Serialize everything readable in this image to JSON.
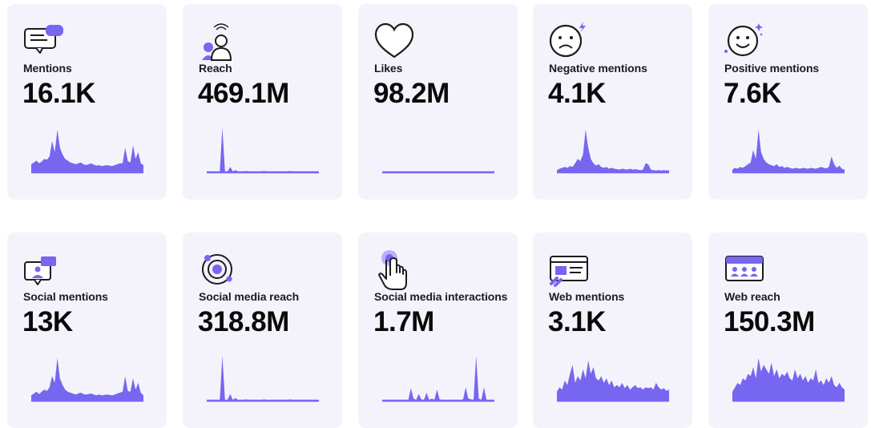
{
  "accent": "#7766f0",
  "cards": [
    {
      "label": "Mentions",
      "value": "16.1K",
      "icon": "speech-bubble-icon",
      "spark": [
        0.18,
        0.22,
        0.26,
        0.2,
        0.24,
        0.3,
        0.28,
        0.35,
        0.7,
        0.45,
        0.95,
        0.55,
        0.4,
        0.3,
        0.26,
        0.22,
        0.2,
        0.18,
        0.2,
        0.22,
        0.18,
        0.16,
        0.18,
        0.2,
        0.17,
        0.15,
        0.16,
        0.14,
        0.15,
        0.16,
        0.15,
        0.14,
        0.16,
        0.18,
        0.2,
        0.2,
        0.55,
        0.25,
        0.22,
        0.6,
        0.3,
        0.45,
        0.2,
        0.16
      ]
    },
    {
      "label": "Reach",
      "value": "469.1M",
      "icon": "audience-icon",
      "spark": [
        0.02,
        0.02,
        0.02,
        0.02,
        0.02,
        0.02,
        1.0,
        0.02,
        0.02,
        0.12,
        0.02,
        0.05,
        0.02,
        0.02,
        0.02,
        0.03,
        0.02,
        0.02,
        0.02,
        0.02,
        0.02,
        0.02,
        0.03,
        0.02,
        0.02,
        0.02,
        0.02,
        0.02,
        0.02,
        0.02,
        0.02,
        0.02,
        0.03,
        0.02,
        0.02,
        0.02,
        0.02,
        0.02,
        0.02,
        0.02,
        0.02,
        0.02,
        0.02,
        0.02
      ]
    },
    {
      "label": "Likes",
      "value": "98.2M",
      "icon": "heart-icon",
      "spark": [
        0.02,
        0.02,
        0.02,
        0.02,
        0.02,
        0.02,
        0.02,
        0.02,
        0.02,
        0.02,
        0.02,
        0.02,
        0.02,
        0.02,
        0.02,
        0.02,
        0.02,
        0.02,
        0.02,
        0.02,
        0.02,
        0.02,
        0.02,
        0.02,
        0.02,
        0.02,
        0.02,
        0.02,
        0.02,
        0.02,
        0.02,
        0.02,
        0.02,
        0.02,
        0.02,
        0.02,
        0.02,
        0.02,
        0.02,
        0.02,
        0.02,
        0.02,
        0.02,
        0.02
      ]
    },
    {
      "label": "Negative mentions",
      "value": "4.1K",
      "icon": "sad-face-icon",
      "spark": [
        0.05,
        0.08,
        0.1,
        0.12,
        0.1,
        0.14,
        0.12,
        0.2,
        0.3,
        0.25,
        0.4,
        0.95,
        0.55,
        0.3,
        0.2,
        0.15,
        0.18,
        0.12,
        0.1,
        0.12,
        0.08,
        0.1,
        0.08,
        0.07,
        0.06,
        0.08,
        0.07,
        0.06,
        0.08,
        0.06,
        0.07,
        0.06,
        0.05,
        0.06,
        0.2,
        0.18,
        0.06,
        0.05,
        0.04,
        0.05,
        0.04,
        0.05,
        0.04,
        0.05
      ]
    },
    {
      "label": "Positive mentions",
      "value": "7.6K",
      "icon": "happy-face-icon",
      "spark": [
        0.06,
        0.1,
        0.08,
        0.12,
        0.1,
        0.14,
        0.18,
        0.22,
        0.5,
        0.3,
        0.95,
        0.45,
        0.3,
        0.22,
        0.18,
        0.16,
        0.14,
        0.18,
        0.12,
        0.14,
        0.1,
        0.12,
        0.1,
        0.08,
        0.1,
        0.09,
        0.08,
        0.1,
        0.09,
        0.08,
        0.1,
        0.09,
        0.08,
        0.1,
        0.12,
        0.1,
        0.09,
        0.12,
        0.35,
        0.18,
        0.1,
        0.15,
        0.08,
        0.06
      ]
    },
    {
      "label": "Social mentions",
      "value": "13K",
      "icon": "social-chat-icon",
      "spark": [
        0.12,
        0.16,
        0.2,
        0.15,
        0.2,
        0.25,
        0.22,
        0.3,
        0.55,
        0.4,
        0.95,
        0.5,
        0.35,
        0.25,
        0.2,
        0.18,
        0.16,
        0.14,
        0.16,
        0.18,
        0.15,
        0.14,
        0.15,
        0.16,
        0.14,
        0.12,
        0.14,
        0.12,
        0.13,
        0.14,
        0.13,
        0.12,
        0.14,
        0.16,
        0.18,
        0.2,
        0.55,
        0.22,
        0.2,
        0.5,
        0.25,
        0.4,
        0.18,
        0.12
      ]
    },
    {
      "label": "Social media reach",
      "value": "318.8M",
      "icon": "orbit-icon",
      "spark": [
        0.02,
        0.02,
        0.02,
        0.02,
        0.02,
        0.02,
        1.0,
        0.02,
        0.02,
        0.15,
        0.02,
        0.06,
        0.02,
        0.02,
        0.02,
        0.03,
        0.02,
        0.02,
        0.02,
        0.02,
        0.02,
        0.02,
        0.03,
        0.02,
        0.02,
        0.02,
        0.02,
        0.02,
        0.02,
        0.02,
        0.02,
        0.02,
        0.03,
        0.02,
        0.02,
        0.02,
        0.02,
        0.02,
        0.02,
        0.02,
        0.02,
        0.02,
        0.02,
        0.02
      ]
    },
    {
      "label": "Social media interactions",
      "value": "1.7M",
      "icon": "tap-hand-icon",
      "spark": [
        0.02,
        0.02,
        0.02,
        0.02,
        0.02,
        0.02,
        0.02,
        0.02,
        0.02,
        0.02,
        0.02,
        0.28,
        0.05,
        0.02,
        0.15,
        0.03,
        0.02,
        0.18,
        0.02,
        0.05,
        0.02,
        0.25,
        0.03,
        0.02,
        0.02,
        0.02,
        0.02,
        0.02,
        0.02,
        0.02,
        0.02,
        0.03,
        0.3,
        0.05,
        0.03,
        0.02,
        1.0,
        0.05,
        0.02,
        0.3,
        0.02,
        0.02,
        0.02,
        0.02
      ]
    },
    {
      "label": "Web mentions",
      "value": "3.1K",
      "icon": "web-link-icon",
      "spark": [
        0.2,
        0.3,
        0.25,
        0.45,
        0.35,
        0.6,
        0.8,
        0.4,
        0.55,
        0.45,
        0.7,
        0.5,
        0.9,
        0.6,
        0.75,
        0.5,
        0.45,
        0.55,
        0.4,
        0.5,
        0.35,
        0.45,
        0.3,
        0.35,
        0.3,
        0.4,
        0.28,
        0.35,
        0.25,
        0.3,
        0.35,
        0.28,
        0.3,
        0.25,
        0.3,
        0.28,
        0.3,
        0.25,
        0.4,
        0.3,
        0.25,
        0.28,
        0.22,
        0.25
      ]
    },
    {
      "label": "Web reach",
      "value": "150.3M",
      "icon": "web-audience-icon",
      "spark": [
        0.2,
        0.3,
        0.4,
        0.35,
        0.5,
        0.45,
        0.6,
        0.55,
        0.75,
        0.5,
        0.95,
        0.65,
        0.8,
        0.7,
        0.6,
        0.85,
        0.55,
        0.7,
        0.5,
        0.6,
        0.55,
        0.65,
        0.5,
        0.45,
        0.7,
        0.5,
        0.6,
        0.45,
        0.55,
        0.4,
        0.5,
        0.45,
        0.7,
        0.4,
        0.45,
        0.35,
        0.5,
        0.4,
        0.55,
        0.35,
        0.3,
        0.4,
        0.3,
        0.25
      ]
    }
  ]
}
